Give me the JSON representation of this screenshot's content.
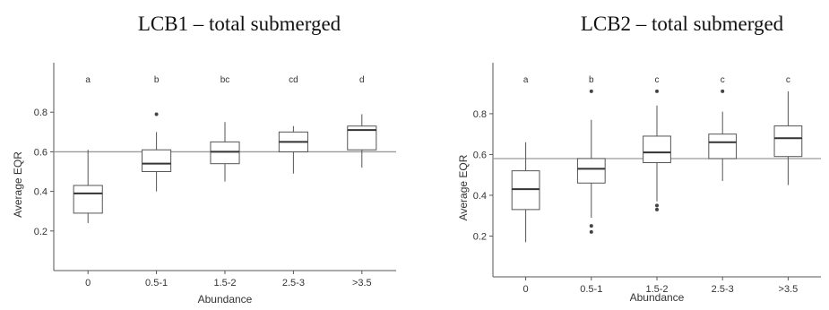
{
  "chart_data": [
    {
      "type": "boxplot",
      "title": "LCB1 – total submerged",
      "xlabel": "Abundance",
      "ylabel": "Average EQR",
      "ylim": [
        0.0,
        1.05
      ],
      "yticks": [
        "0.2",
        "0.4",
        "0.6",
        "0.8"
      ],
      "reference_line": 0.6,
      "grid": false,
      "categories": [
        "0",
        "0.5-1",
        "1.5-2",
        "2.5-3",
        ">3.5"
      ],
      "significance_letters": [
        "a",
        "b",
        "bc",
        "cd",
        "d"
      ],
      "boxes": [
        {
          "category": "0",
          "min": 0.24,
          "q1": 0.29,
          "median": 0.39,
          "q3": 0.43,
          "max": 0.61,
          "outliers": []
        },
        {
          "category": "0.5-1",
          "min": 0.4,
          "q1": 0.5,
          "median": 0.54,
          "q3": 0.61,
          "max": 0.7,
          "outliers": [
            0.79
          ]
        },
        {
          "category": "1.5-2",
          "min": 0.45,
          "q1": 0.54,
          "median": 0.6,
          "q3": 0.65,
          "max": 0.75,
          "outliers": []
        },
        {
          "category": "2.5-3",
          "min": 0.49,
          "q1": 0.6,
          "median": 0.65,
          "q3": 0.7,
          "max": 0.73,
          "outliers": []
        },
        {
          "category": ">3.5",
          "min": 0.52,
          "q1": 0.61,
          "median": 0.71,
          "q3": 0.73,
          "max": 0.79,
          "outliers": []
        }
      ]
    },
    {
      "type": "boxplot",
      "title": "LCB2 – total submerged",
      "xlabel": "Abundance",
      "ylabel": "Average EQR",
      "ylim": [
        0.0,
        1.05
      ],
      "yticks": [
        "0.2",
        "0.4",
        "0.6",
        "0.8"
      ],
      "reference_line": 0.58,
      "grid": false,
      "categories": [
        "0",
        "0.5-1",
        "1.5-2",
        "2.5-3",
        ">3.5"
      ],
      "significance_letters": [
        "a",
        "b",
        "c",
        "c",
        "c"
      ],
      "boxes": [
        {
          "category": "0",
          "min": 0.17,
          "q1": 0.33,
          "median": 0.43,
          "q3": 0.52,
          "max": 0.66,
          "outliers": []
        },
        {
          "category": "0.5-1",
          "min": 0.29,
          "q1": 0.46,
          "median": 0.53,
          "q3": 0.58,
          "max": 0.77,
          "outliers": [
            0.91,
            0.25,
            0.22
          ]
        },
        {
          "category": "1.5-2",
          "min": 0.37,
          "q1": 0.56,
          "median": 0.61,
          "q3": 0.69,
          "max": 0.84,
          "outliers": [
            0.91,
            0.35,
            0.33
          ]
        },
        {
          "category": "2.5-3",
          "min": 0.47,
          "q1": 0.58,
          "median": 0.66,
          "q3": 0.7,
          "max": 0.81,
          "outliers": [
            0.91
          ]
        },
        {
          "category": ">3.5",
          "min": 0.45,
          "q1": 0.59,
          "median": 0.68,
          "q3": 0.74,
          "max": 0.91,
          "outliers": []
        }
      ]
    }
  ]
}
